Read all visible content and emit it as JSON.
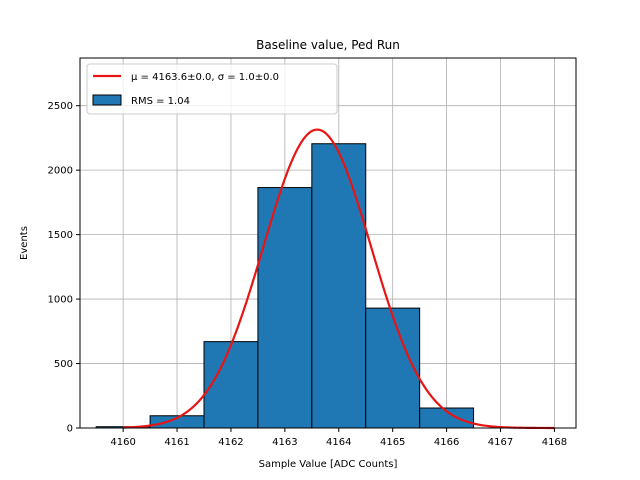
{
  "chart_data": {
    "type": "bar",
    "title": "Baseline value, Ped Run",
    "xlabel": "Sample Value [ADC Counts]",
    "ylabel": "Events",
    "xlim": [
      4159.2,
      4168.4
    ],
    "ylim": [
      0,
      2870
    ],
    "xticks": [
      4160,
      4161,
      4162,
      4163,
      4164,
      4165,
      4166,
      4167,
      4168
    ],
    "xtick_labels": [
      "4160",
      "4161",
      "4162",
      "4163",
      "4164",
      "4165",
      "4166",
      "4167",
      "4168"
    ],
    "yticks": [
      0,
      500,
      1000,
      1500,
      2000,
      2500
    ],
    "ytick_labels": [
      "0",
      "500",
      "1000",
      "1500",
      "2000",
      "2500"
    ],
    "grid": true,
    "legend_position": "top-left",
    "bins": [
      {
        "left": 4159.5,
        "right": 4160.5,
        "count": 10
      },
      {
        "left": 4160.5,
        "right": 4161.5,
        "count": 95
      },
      {
        "left": 4161.5,
        "right": 4162.5,
        "count": 670
      },
      {
        "left": 4162.5,
        "right": 4163.5,
        "count": 1865
      },
      {
        "left": 4163.5,
        "right": 4164.5,
        "count": 2205
      },
      {
        "left": 4164.5,
        "right": 4165.5,
        "count": 930
      },
      {
        "left": 4165.5,
        "right": 4166.5,
        "count": 155
      },
      {
        "left": 4166.5,
        "right": 4167.5,
        "count": 0
      },
      {
        "left": 4167.5,
        "right": 4168.5,
        "count": 0
      }
    ],
    "hist_color": "#1f77b4",
    "hist_legend": "RMS = 1.04",
    "fit": {
      "mu": 4163.6,
      "sigma": 1.0,
      "amplitude": 2315,
      "x_range": [
        4160,
        4168
      ],
      "color": "#e81515",
      "legend_prefix": "μ = 4163.6±0.0, σ = 1.0±0.0"
    }
  }
}
